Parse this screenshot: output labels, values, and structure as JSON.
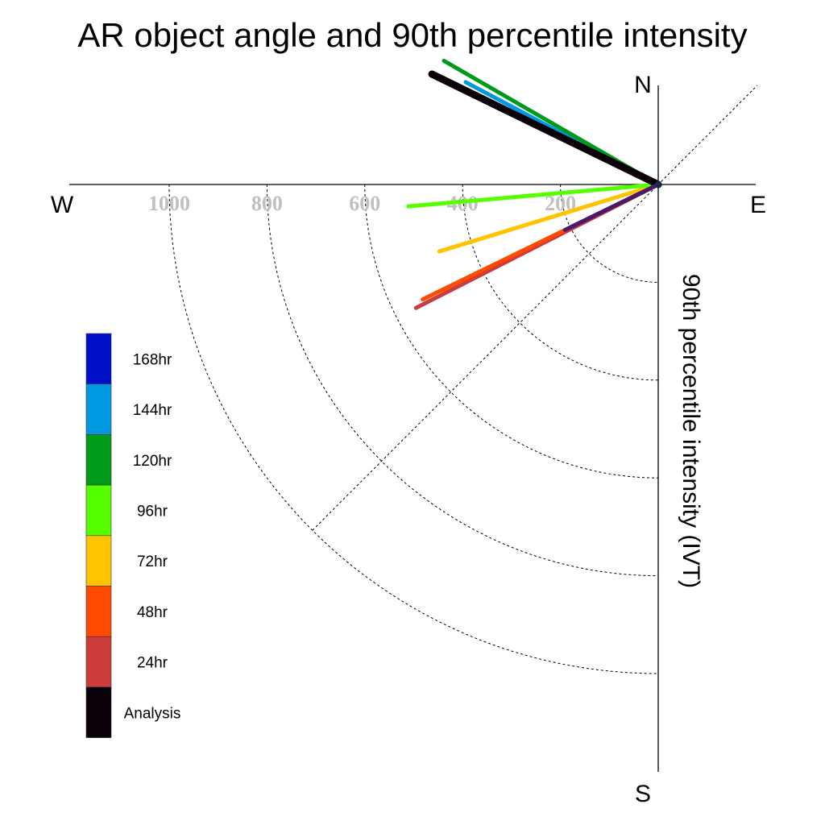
{
  "chart_data": {
    "type": "polar-quadrant-vectors",
    "title": "AR object angle and 90th percentile intensity",
    "radial_label": "90th percentile intensity (IVT)",
    "compass": {
      "north": "N",
      "south": "S",
      "east": "E",
      "west": "W"
    },
    "radial_ticks": [
      200,
      400,
      600,
      800,
      1000
    ],
    "radial_max": 1000,
    "grid": true,
    "legend_position": "left",
    "angle_units": "degrees clockwise from North",
    "series": [
      {
        "name": "Analysis",
        "color": "#0a0008",
        "angle": 296,
        "intensity": 515,
        "width": 9
      },
      {
        "name": "24hr",
        "color": "#cc3c3c",
        "angle": 243,
        "intensity": 556,
        "width": 5
      },
      {
        "name": "48hr",
        "color": "#ff4a00",
        "angle": 244,
        "intensity": 536,
        "width": 5
      },
      {
        "name": "72hr",
        "color": "#ffc400",
        "angle": 253,
        "intensity": 468,
        "width": 5
      },
      {
        "name": "96hr",
        "color": "#55ff00",
        "angle": 265,
        "intensity": 513,
        "width": 5
      },
      {
        "name": "120hr",
        "color": "#009a1a",
        "angle": 300,
        "intensity": 506,
        "width": 5
      },
      {
        "name": "144hr",
        "color": "#0098e0",
        "angle": 298,
        "intensity": 446,
        "width": 5
      },
      {
        "name": "168hr",
        "color": "#0010c8",
        "angle": 244,
        "intensity": 200,
        "width": 5
      }
    ],
    "overlay": {
      "color": "#4a1a6a",
      "angle": 244,
      "intensity": 212
    },
    "legend_order": [
      "168hr",
      "144hr",
      "120hr",
      "96hr",
      "72hr",
      "48hr",
      "24hr",
      "Analysis"
    ]
  }
}
